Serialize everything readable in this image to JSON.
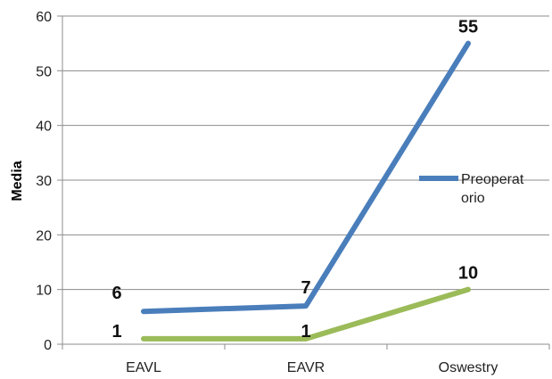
{
  "chart_data": {
    "type": "line",
    "categories": [
      "EAVL",
      "EAVR",
      "Oswestry"
    ],
    "ylabel": "Media",
    "ylim": [
      0,
      60
    ],
    "yticks": [
      0,
      10,
      20,
      30,
      40,
      50,
      60
    ],
    "grid": true,
    "legend_position": "right",
    "series": [
      {
        "name": "Preoperatorio",
        "legend_lines": [
          "Preoperat",
          "orio"
        ],
        "color": "#4a7ebb",
        "values": [
          6,
          7,
          55
        ],
        "labels": [
          "6",
          "7",
          "55"
        ]
      },
      {
        "name": "",
        "color": "#9bbb59",
        "values": [
          1,
          1,
          10
        ],
        "labels": [
          "1",
          "1",
          "10"
        ]
      }
    ]
  }
}
